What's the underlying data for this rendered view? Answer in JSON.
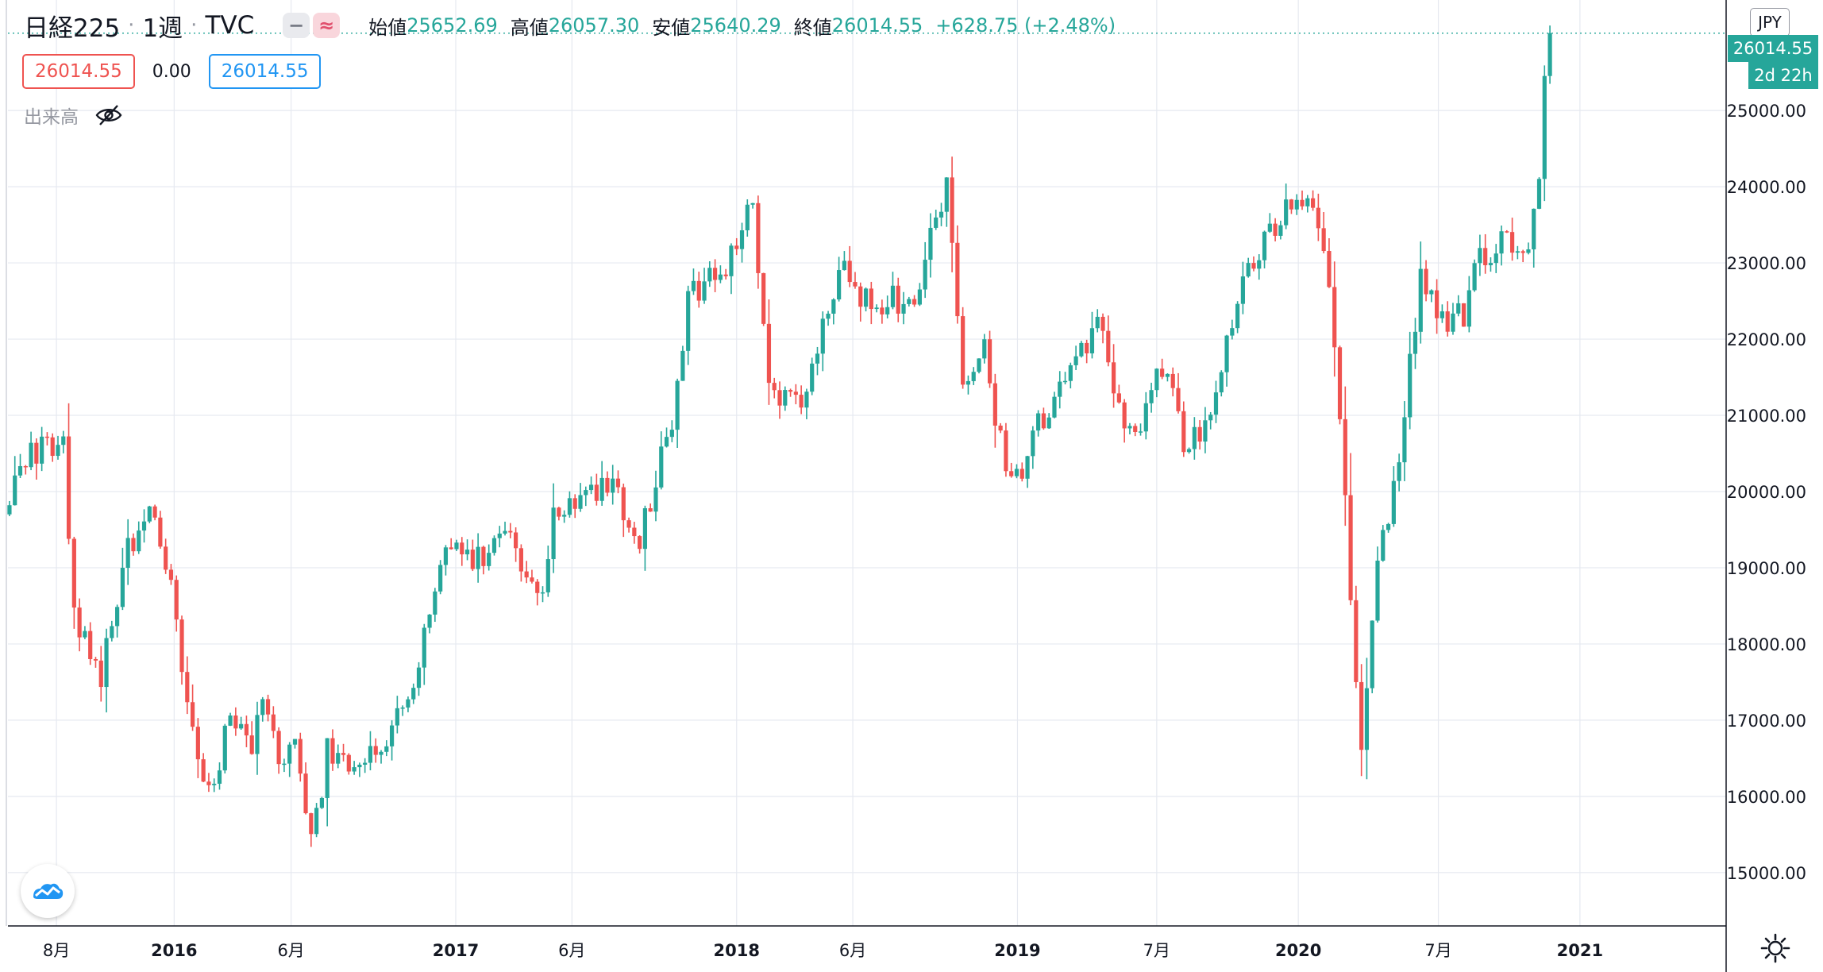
{
  "header": {
    "symbol": "日経225",
    "interval": "1週",
    "exchange": "TVC",
    "open_label": "始値",
    "open_value": "25652.69",
    "high_label": "高値",
    "high_value": "26057.30",
    "low_label": "安値",
    "low_value": "25640.29",
    "close_label": "終値",
    "close_value": "26014.55",
    "change": "+628.75 (+2.48%)",
    "change_color": "#26a69a"
  },
  "legend": {
    "bid": "26014.55",
    "spread": "0.00",
    "ask": "26014.55"
  },
  "volume": {
    "label": "出来高",
    "icon": "eye-off-icon"
  },
  "price_axis": {
    "currency": "JPY",
    "last_price": "26014.55",
    "countdown": "2d 22h"
  },
  "colors": {
    "up": "#26a69a",
    "down": "#ef5350",
    "grid": "#e6e9f0"
  },
  "chart_data": {
    "type": "candlestick",
    "y_ticks": [
      "15000.00",
      "16000.00",
      "17000.00",
      "18000.00",
      "19000.00",
      "20000.00",
      "21000.00",
      "22000.00",
      "23000.00",
      "24000.00",
      "25000.00"
    ],
    "ylim": [
      14300,
      26450
    ],
    "x_ticks": [
      "8月",
      "2016",
      "6月",
      "2017",
      "6月",
      "2018",
      "6月",
      "2019",
      "7月",
      "2020",
      "7月",
      "2021"
    ],
    "x_tick_dates": [
      "2015-08-01",
      "2016-01-01",
      "2016-06-01",
      "2017-01-01",
      "2017-06-01",
      "2018-01-01",
      "2018-06-01",
      "2019-01-01",
      "2019-07-01",
      "2020-01-01",
      "2020-07-01",
      "2021-01-01"
    ],
    "x_range": [
      "2015-05-30",
      "2021-07-10"
    ],
    "series_keypoints": [
      {
        "date": "2015-06-01",
        "value": 20000
      },
      {
        "date": "2015-06-22",
        "value": 20400
      },
      {
        "date": "2015-07-13",
        "value": 20600
      },
      {
        "date": "2015-08-10",
        "value": 20700
      },
      {
        "date": "2015-08-24",
        "value": 18400
      },
      {
        "date": "2015-09-28",
        "value": 17600
      },
      {
        "date": "2015-11-02",
        "value": 19200
      },
      {
        "date": "2015-11-30",
        "value": 19700
      },
      {
        "date": "2015-12-28",
        "value": 19000
      },
      {
        "date": "2016-01-18",
        "value": 17200
      },
      {
        "date": "2016-02-15",
        "value": 16000
      },
      {
        "date": "2016-03-14",
        "value": 17000
      },
      {
        "date": "2016-04-11",
        "value": 16500
      },
      {
        "date": "2016-04-25",
        "value": 17400
      },
      {
        "date": "2016-05-16",
        "value": 16600
      },
      {
        "date": "2016-06-06",
        "value": 16600
      },
      {
        "date": "2016-06-27",
        "value": 15300
      },
      {
        "date": "2016-07-18",
        "value": 16600
      },
      {
        "date": "2016-08-15",
        "value": 16500
      },
      {
        "date": "2016-09-19",
        "value": 16500
      },
      {
        "date": "2016-10-17",
        "value": 17000
      },
      {
        "date": "2016-11-14",
        "value": 17800
      },
      {
        "date": "2016-12-12",
        "value": 19200
      },
      {
        "date": "2017-01-30",
        "value": 19100
      },
      {
        "date": "2017-03-13",
        "value": 19400
      },
      {
        "date": "2017-04-17",
        "value": 18500
      },
      {
        "date": "2017-05-08",
        "value": 19600
      },
      {
        "date": "2017-06-19",
        "value": 20100
      },
      {
        "date": "2017-07-24",
        "value": 20000
      },
      {
        "date": "2017-08-28",
        "value": 19400
      },
      {
        "date": "2017-09-18",
        "value": 20200
      },
      {
        "date": "2017-10-09",
        "value": 21000
      },
      {
        "date": "2017-10-30",
        "value": 22500
      },
      {
        "date": "2017-12-18",
        "value": 22900
      },
      {
        "date": "2018-01-22",
        "value": 23800
      },
      {
        "date": "2018-02-12",
        "value": 21400
      },
      {
        "date": "2018-03-26",
        "value": 21200
      },
      {
        "date": "2018-04-30",
        "value": 22500
      },
      {
        "date": "2018-05-21",
        "value": 22900
      },
      {
        "date": "2018-06-25",
        "value": 22400
      },
      {
        "date": "2018-07-23",
        "value": 22500
      },
      {
        "date": "2018-08-20",
        "value": 22600
      },
      {
        "date": "2018-09-24",
        "value": 23800
      },
      {
        "date": "2018-10-01",
        "value": 24100
      },
      {
        "date": "2018-10-22",
        "value": 21500
      },
      {
        "date": "2018-11-19",
        "value": 21800
      },
      {
        "date": "2018-12-17",
        "value": 20200
      },
      {
        "date": "2018-12-24",
        "value": 20000
      },
      {
        "date": "2019-01-21",
        "value": 20700
      },
      {
        "date": "2019-02-25",
        "value": 21500
      },
      {
        "date": "2019-04-15",
        "value": 22200
      },
      {
        "date": "2019-05-13",
        "value": 21100
      },
      {
        "date": "2019-06-03",
        "value": 20700
      },
      {
        "date": "2019-07-08",
        "value": 21600
      },
      {
        "date": "2019-08-12",
        "value": 20500
      },
      {
        "date": "2019-09-09",
        "value": 21100
      },
      {
        "date": "2019-10-14",
        "value": 22500
      },
      {
        "date": "2019-11-18",
        "value": 23300
      },
      {
        "date": "2019-12-16",
        "value": 23800
      },
      {
        "date": "2020-01-13",
        "value": 24000
      },
      {
        "date": "2020-02-03",
        "value": 23300
      },
      {
        "date": "2020-02-24",
        "value": 21100
      },
      {
        "date": "2020-03-16",
        "value": 17400
      },
      {
        "date": "2020-03-23",
        "value": 16600
      },
      {
        "date": "2020-04-13",
        "value": 19000
      },
      {
        "date": "2020-05-11",
        "value": 20400
      },
      {
        "date": "2020-06-08",
        "value": 22800
      },
      {
        "date": "2020-07-06",
        "value": 22300
      },
      {
        "date": "2020-08-03",
        "value": 22300
      },
      {
        "date": "2020-08-24",
        "value": 23100
      },
      {
        "date": "2020-09-21",
        "value": 23300
      },
      {
        "date": "2020-10-26",
        "value": 23000
      },
      {
        "date": "2020-11-09",
        "value": 24300
      },
      {
        "date": "2020-11-16",
        "value": 25500
      },
      {
        "date": "2020-11-23",
        "value": 26014.55
      }
    ],
    "last_close": 26014.55
  }
}
